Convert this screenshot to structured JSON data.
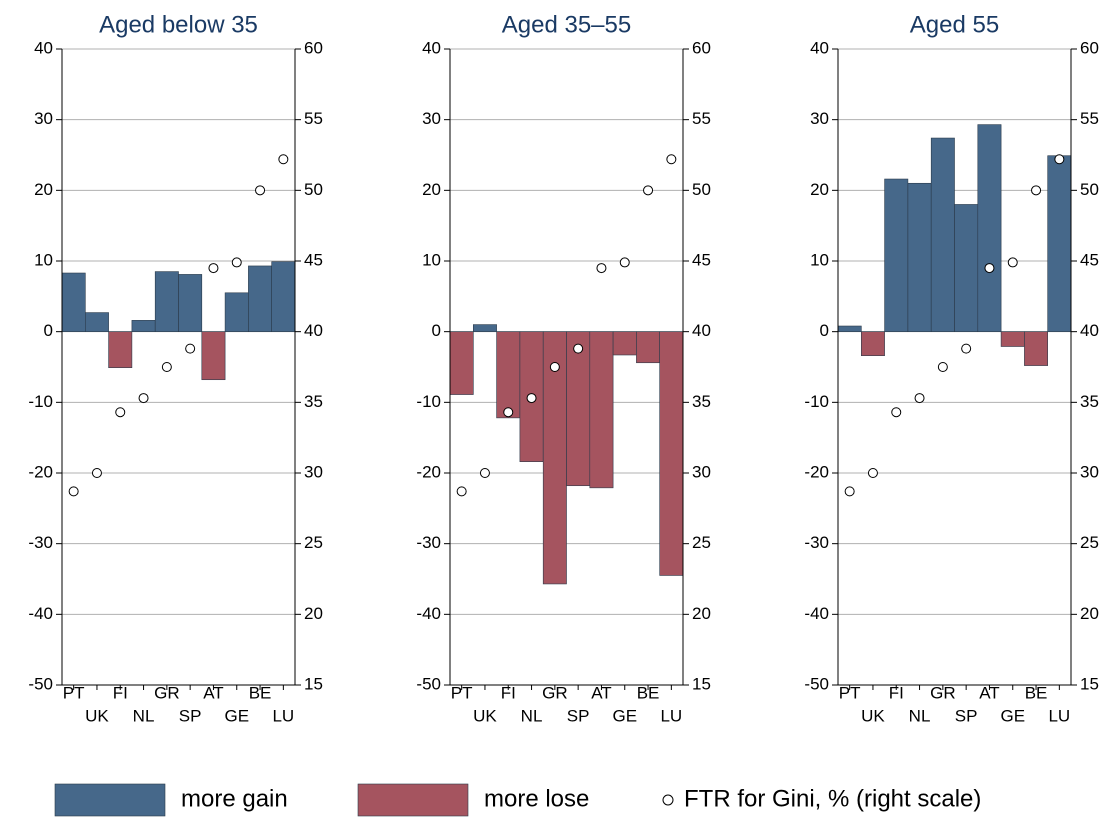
{
  "chart_data": [
    {
      "type": "bar",
      "title": "Aged below 35",
      "categories": [
        "PT",
        "UK",
        "FI",
        "NL",
        "GR",
        "SP",
        "AT",
        "GE",
        "BE",
        "LU"
      ],
      "series": [
        {
          "name": "more gain",
          "color": "#46688a",
          "values": [
            8.3,
            2.7,
            null,
            1.6,
            8.5,
            8.1,
            null,
            5.5,
            9.3,
            9.9
          ]
        },
        {
          "name": "more lose",
          "color": "#a5545f",
          "values": [
            null,
            null,
            -5.1,
            null,
            null,
            null,
            -6.8,
            null,
            null,
            null
          ]
        },
        {
          "name": "FTR for Gini, % (right scale)",
          "type": "scatter",
          "axis": "y2",
          "color": "#000000",
          "values": [
            28.7,
            30.0,
            34.3,
            35.3,
            37.5,
            38.8,
            44.5,
            44.9,
            50.0,
            52.2
          ]
        }
      ],
      "ylim": [
        -50,
        40
      ],
      "yticks": [
        -50,
        -40,
        -30,
        -20,
        -10,
        0,
        10,
        20,
        30,
        40
      ],
      "y2lim": [
        15,
        60
      ],
      "y2ticks": [
        15,
        20,
        25,
        30,
        35,
        40,
        45,
        50,
        55,
        60
      ],
      "grid": true
    },
    {
      "type": "bar",
      "title": "Aged 35–55",
      "categories": [
        "PT",
        "UK",
        "FI",
        "NL",
        "GR",
        "SP",
        "AT",
        "GE",
        "BE",
        "LU"
      ],
      "series": [
        {
          "name": "more gain",
          "color": "#46688a",
          "values": [
            null,
            1.0,
            null,
            null,
            null,
            null,
            null,
            null,
            null,
            null
          ]
        },
        {
          "name": "more lose",
          "color": "#a5545f",
          "values": [
            -8.9,
            null,
            -12.2,
            -18.4,
            -35.7,
            -21.8,
            -22.1,
            -3.3,
            -4.4,
            -34.5
          ]
        },
        {
          "name": "FTR for Gini, % (right scale)",
          "type": "scatter",
          "axis": "y2",
          "color": "#000000",
          "values": [
            28.7,
            30.0,
            34.3,
            35.3,
            37.5,
            38.8,
            44.5,
            44.9,
            50.0,
            52.2
          ]
        }
      ],
      "ylim": [
        -50,
        40
      ],
      "yticks": [
        -50,
        -40,
        -30,
        -20,
        -10,
        0,
        10,
        20,
        30,
        40
      ],
      "y2lim": [
        15,
        60
      ],
      "y2ticks": [
        15,
        20,
        25,
        30,
        35,
        40,
        45,
        50,
        55,
        60
      ],
      "grid": true
    },
    {
      "type": "bar",
      "title": "Aged 55",
      "categories": [
        "PT",
        "UK",
        "FI",
        "NL",
        "GR",
        "SP",
        "AT",
        "GE",
        "BE",
        "LU"
      ],
      "series": [
        {
          "name": "more gain",
          "color": "#46688a",
          "values": [
            0.8,
            null,
            21.6,
            21.0,
            27.4,
            18.0,
            29.3,
            null,
            null,
            24.9
          ]
        },
        {
          "name": "more lose",
          "color": "#a5545f",
          "values": [
            null,
            -3.4,
            null,
            null,
            null,
            null,
            null,
            -2.1,
            -4.8,
            null
          ]
        },
        {
          "name": "FTR for Gini, % (right scale)",
          "type": "scatter",
          "axis": "y2",
          "color": "#000000",
          "values": [
            28.7,
            30.0,
            34.3,
            35.3,
            37.5,
            38.8,
            44.5,
            44.9,
            50.0,
            52.2
          ]
        }
      ],
      "ylim": [
        -50,
        40
      ],
      "yticks": [
        -50,
        -40,
        -30,
        -20,
        -10,
        0,
        10,
        20,
        30,
        40
      ],
      "y2lim": [
        15,
        60
      ],
      "y2ticks": [
        15,
        20,
        25,
        30,
        35,
        40,
        45,
        50,
        55,
        60
      ],
      "grid": true
    }
  ]
}
